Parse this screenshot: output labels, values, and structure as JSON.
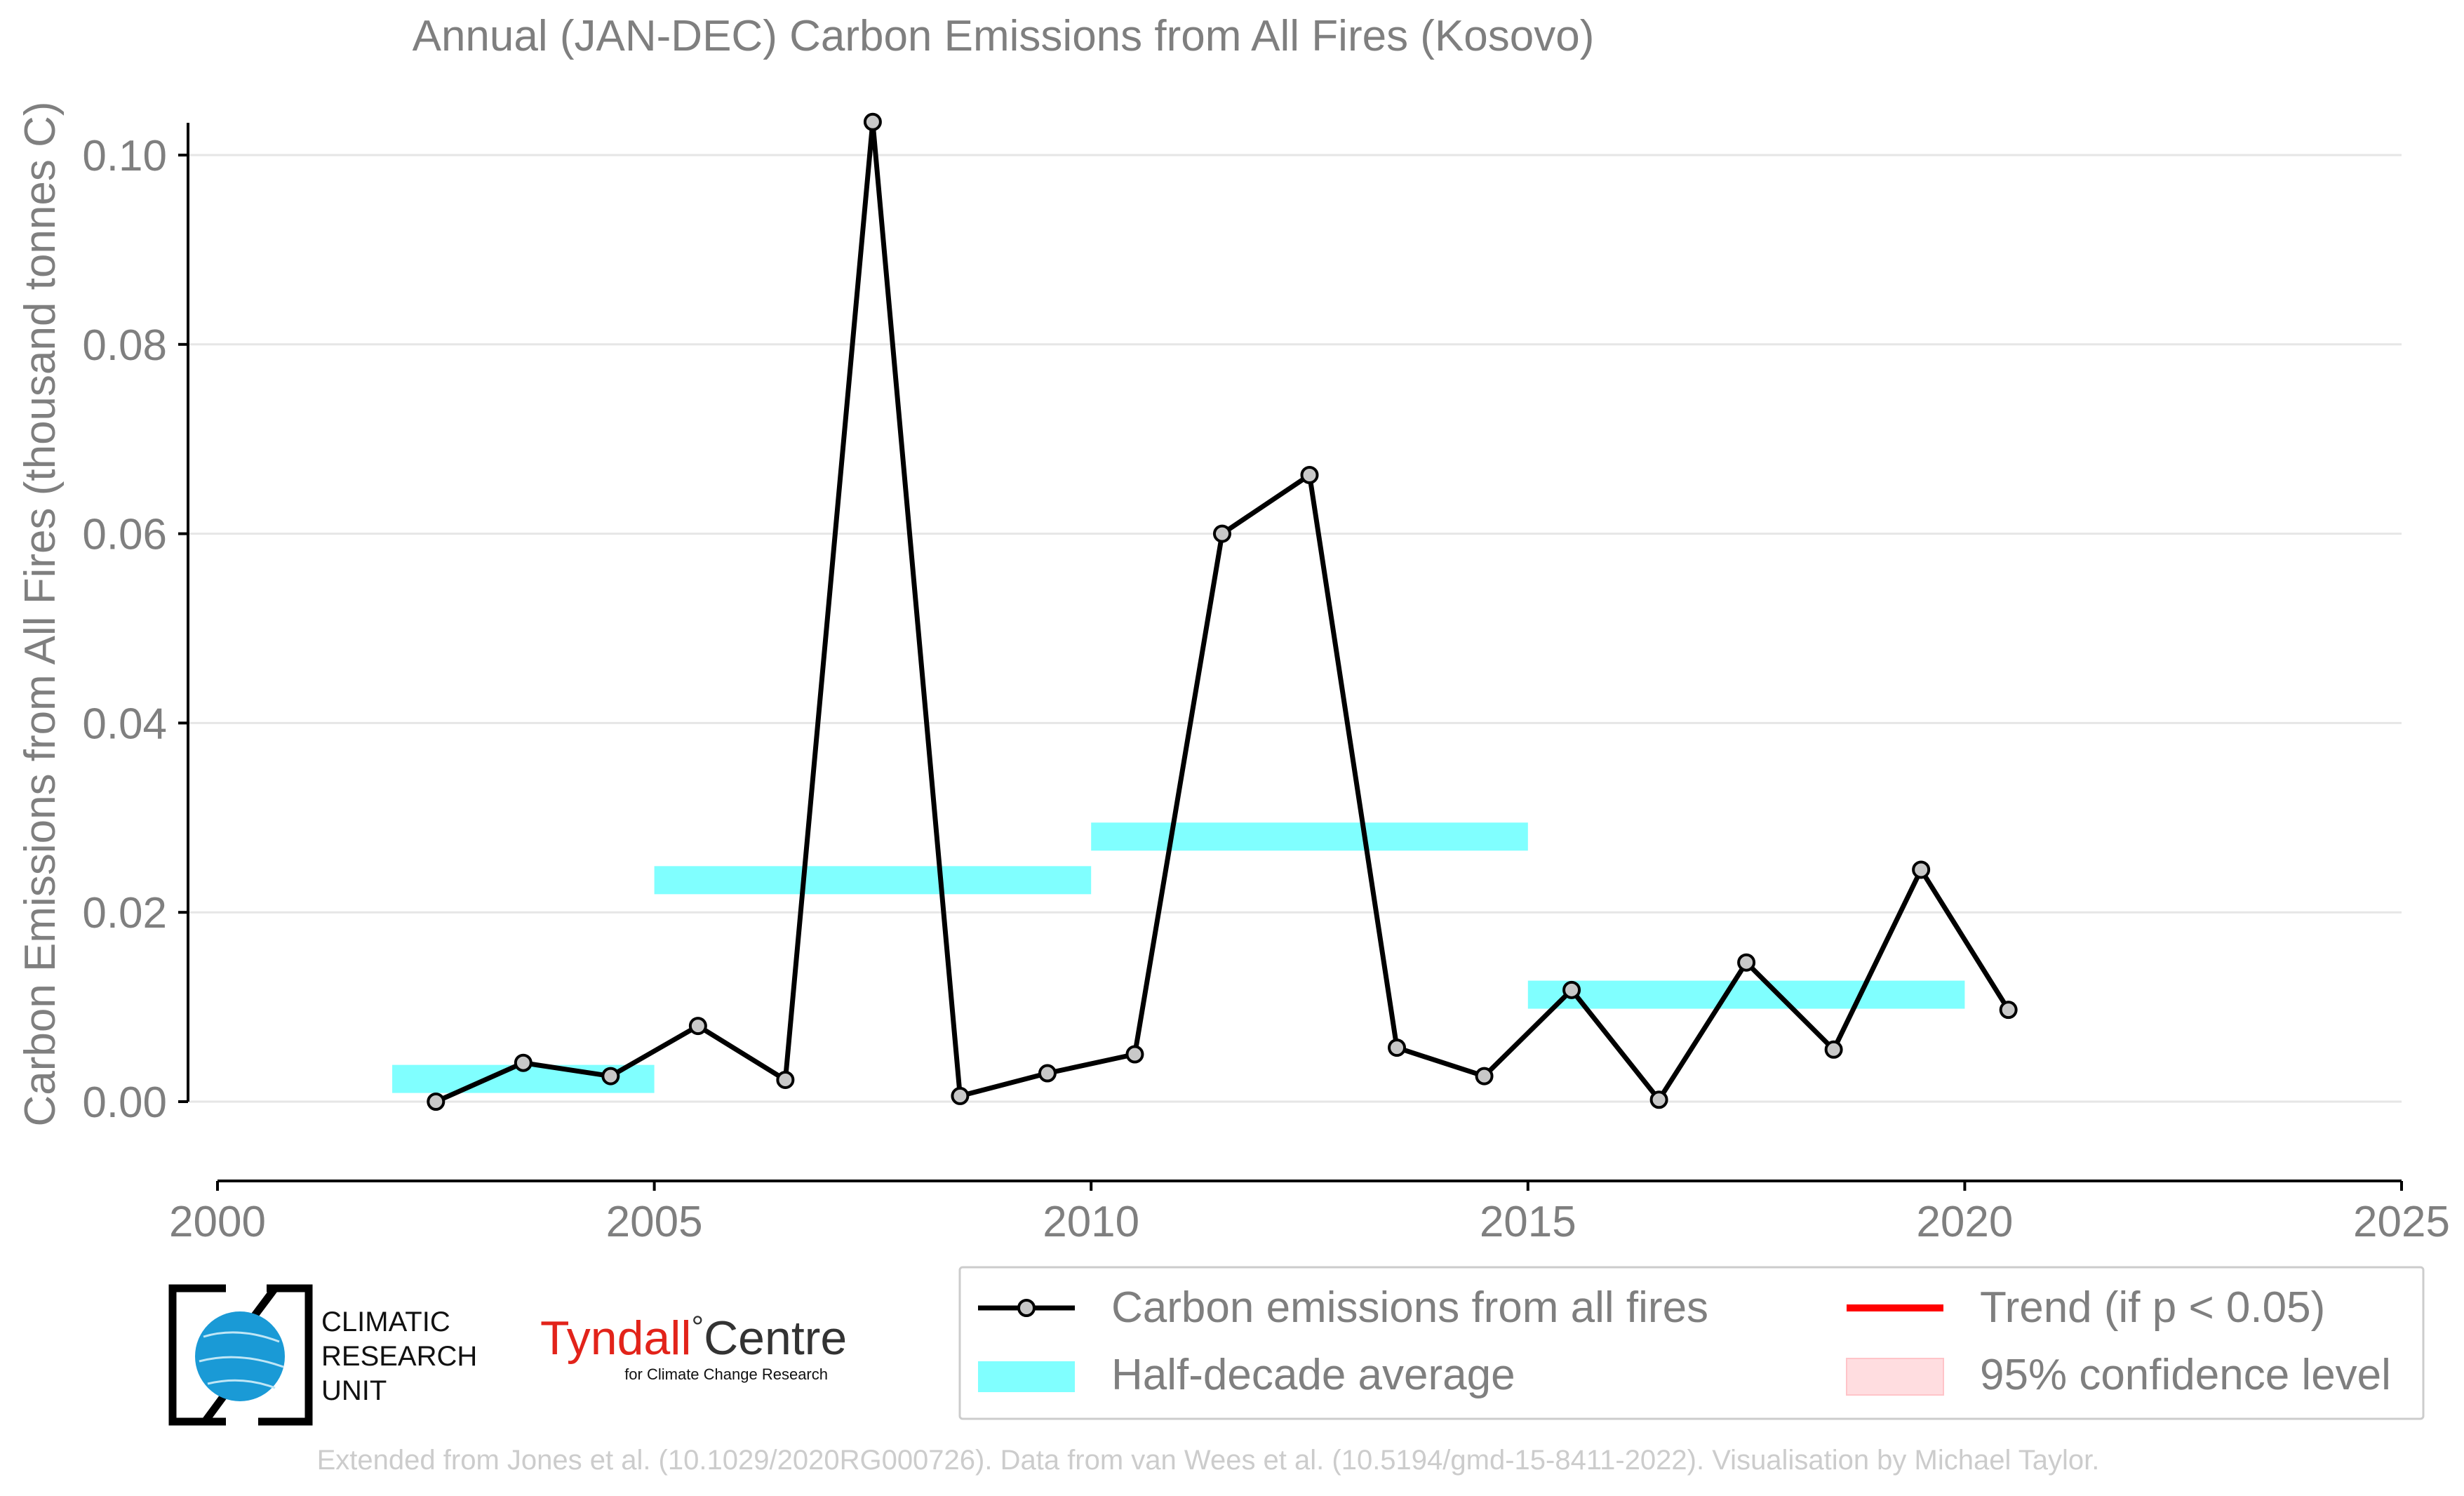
{
  "chart_data": {
    "type": "line",
    "title": "Annual (JAN-DEC) Carbon Emissions from All Fires (Kosovo)",
    "xlabel": "",
    "ylabel": "Carbon Emissions from All Fires (thousand tonnes C)",
    "xlim": [
      2000,
      2025
    ],
    "ylim": [
      -0.008,
      0.104
    ],
    "x_ticks": [
      2000,
      2005,
      2010,
      2015,
      2020,
      2025
    ],
    "x_tick_labels": [
      "2000",
      "2005",
      "2010",
      "2015",
      "2020",
      "2025"
    ],
    "y_ticks": [
      0.0,
      0.02,
      0.04,
      0.06,
      0.08,
      0.1
    ],
    "y_tick_labels": [
      "0.00",
      "0.02",
      "0.04",
      "0.06",
      "0.08",
      "0.10"
    ],
    "grid": "horizontal",
    "series": [
      {
        "name": "Carbon emissions from all fires",
        "color": "#000000",
        "marker_fill": "#c8c8c8",
        "x": [
          2002.5,
          2003.5,
          2004.5,
          2005.5,
          2006.5,
          2007.5,
          2008.5,
          2009.5,
          2010.5,
          2011.5,
          2012.5,
          2013.5,
          2014.5,
          2015.5,
          2016.5,
          2017.5,
          2018.5,
          2019.5,
          2020.5
        ],
        "values": [
          0.0,
          0.0041,
          0.0027,
          0.008,
          0.0023,
          0.1035,
          0.0006,
          0.003,
          0.005,
          0.06,
          0.0662,
          0.0057,
          0.0027,
          0.0118,
          0.0002,
          0.0147,
          0.0055,
          0.0245,
          0.0097
        ]
      }
    ],
    "half_decade_average": {
      "name": "Half-decade average",
      "color": "#80ffff",
      "periods": [
        {
          "start": 2002,
          "end": 2005,
          "value": 0.0024
        },
        {
          "start": 2005,
          "end": 2010,
          "value": 0.0234
        },
        {
          "start": 2010,
          "end": 2015,
          "value": 0.028
        },
        {
          "start": 2015,
          "end": 2020,
          "value": 0.0113
        }
      ]
    },
    "legend": {
      "placement": "bottom-right",
      "entries": [
        {
          "label": "Carbon emissions from all fires",
          "kind": "line-marker",
          "color": "#000000"
        },
        {
          "label": "Trend (if p < 0.05)",
          "kind": "line",
          "color": "#ff0000"
        },
        {
          "label": "Half-decade average",
          "kind": "band",
          "color": "#80ffff"
        },
        {
          "label": "95% confidence level",
          "kind": "patch",
          "color": "#ffdde0"
        }
      ]
    }
  },
  "logos": {
    "cru_lines": [
      "CLIMATIC",
      "RESEARCH",
      "UNIT"
    ],
    "tyndall_name": "Tyndall",
    "tyndall_degree": "°",
    "tyndall_centre": "Centre",
    "tyndall_sub": "for Climate Change Research"
  },
  "footer": "Extended from Jones et al. (10.1029/2020RG000726). Data from van Wees et al. (10.5194/gmd-15-8411-2022). Visualisation by Michael Taylor.",
  "colors": {
    "axis_text": "#7f7f7f",
    "grid": "#e6e6e6",
    "footer_text": "#cccccc",
    "tyndall_red": "#e2231a",
    "cru_blue": "#1a9ad6"
  }
}
